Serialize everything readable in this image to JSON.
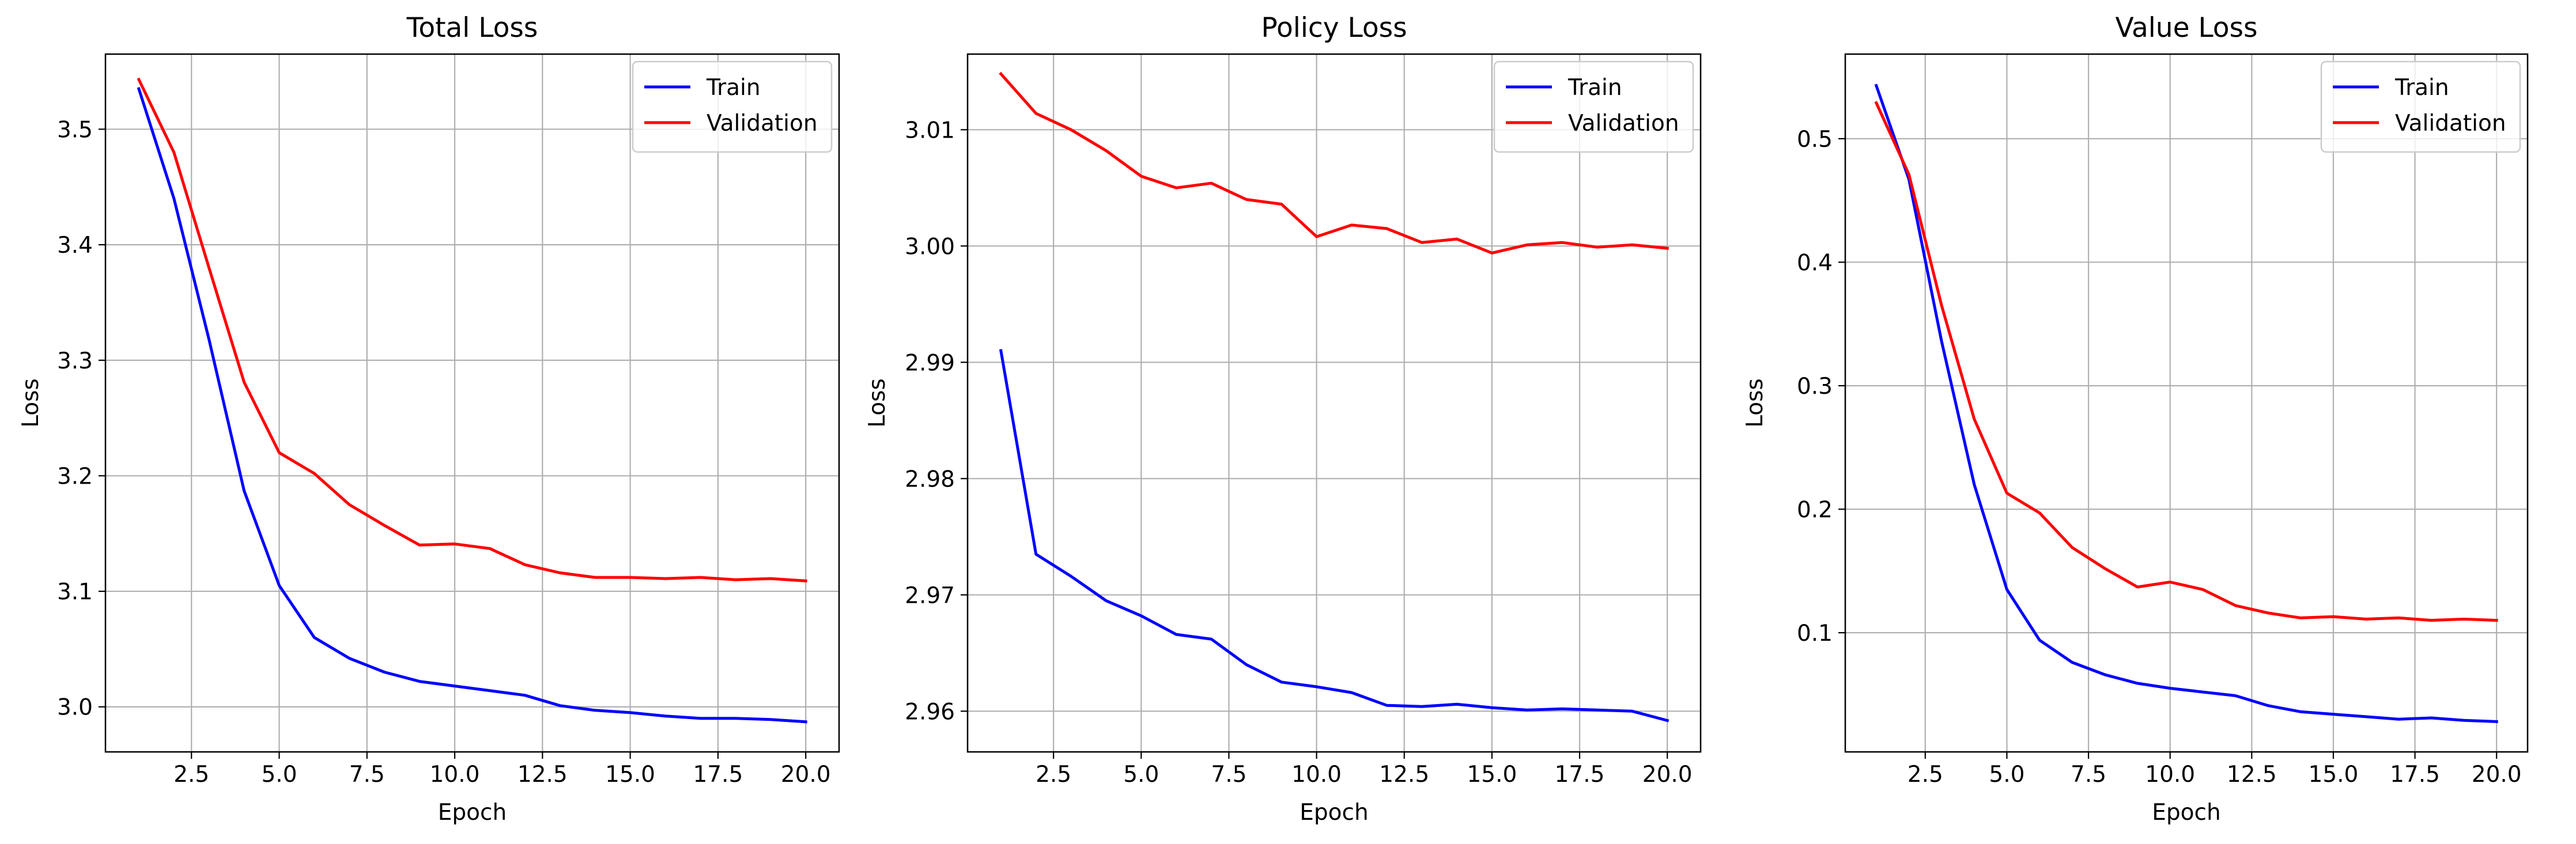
{
  "chart_data": [
    {
      "type": "line",
      "title": "Total Loss",
      "xlabel": "Epoch",
      "ylabel": "Loss",
      "xlim": [
        0.05,
        20.95
      ],
      "ylim": [
        2.961,
        3.565
      ],
      "xticks": [
        2.5,
        5.0,
        7.5,
        10.0,
        12.5,
        15.0,
        17.5,
        20.0
      ],
      "xtick_labels": [
        "2.5",
        "5.0",
        "7.5",
        "10.0",
        "12.5",
        "15.0",
        "17.5",
        "20.0"
      ],
      "yticks": [
        3.0,
        3.1,
        3.2,
        3.3,
        3.4,
        3.5
      ],
      "ytick_labels": [
        "3.0",
        "3.1",
        "3.2",
        "3.3",
        "3.4",
        "3.5"
      ],
      "grid": true,
      "legend_position": "top-right",
      "x": [
        1,
        2,
        3,
        4,
        5,
        6,
        7,
        8,
        9,
        10,
        11,
        12,
        13,
        14,
        15,
        16,
        17,
        18,
        19,
        20
      ],
      "series": [
        {
          "name": "Train",
          "color": "#0000ff",
          "values": [
            3.535,
            3.44,
            3.318,
            3.187,
            3.105,
            3.06,
            3.042,
            3.03,
            3.022,
            3.018,
            3.014,
            3.01,
            3.001,
            2.997,
            2.995,
            2.992,
            2.99,
            2.99,
            2.989,
            2.987
          ]
        },
        {
          "name": "Validation",
          "color": "#ff0000",
          "values": [
            3.543,
            3.48,
            3.38,
            3.281,
            3.22,
            3.202,
            3.175,
            3.157,
            3.14,
            3.141,
            3.137,
            3.123,
            3.116,
            3.112,
            3.112,
            3.111,
            3.112,
            3.11,
            3.111,
            3.109
          ]
        }
      ]
    },
    {
      "type": "line",
      "title": "Policy Loss",
      "xlabel": "Epoch",
      "ylabel": "Loss",
      "xlim": [
        0.05,
        20.95
      ],
      "ylim": [
        2.9565,
        3.0165
      ],
      "xticks": [
        2.5,
        5.0,
        7.5,
        10.0,
        12.5,
        15.0,
        17.5,
        20.0
      ],
      "xtick_labels": [
        "2.5",
        "5.0",
        "7.5",
        "10.0",
        "12.5",
        "15.0",
        "17.5",
        "20.0"
      ],
      "yticks": [
        2.96,
        2.97,
        2.98,
        2.99,
        3.0,
        3.01
      ],
      "ytick_labels": [
        "2.96",
        "2.97",
        "2.98",
        "2.99",
        "3.00",
        "3.01"
      ],
      "grid": true,
      "legend_position": "top-right",
      "x": [
        1,
        2,
        3,
        4,
        5,
        6,
        7,
        8,
        9,
        10,
        11,
        12,
        13,
        14,
        15,
        16,
        17,
        18,
        19,
        20
      ],
      "series": [
        {
          "name": "Train",
          "color": "#0000ff",
          "values": [
            2.991,
            2.9735,
            2.9716,
            2.9695,
            2.9682,
            2.9666,
            2.9662,
            2.964,
            2.9625,
            2.9621,
            2.9616,
            2.9605,
            2.9604,
            2.9606,
            2.9603,
            2.9601,
            2.9602,
            2.9601,
            2.96,
            2.9592
          ]
        },
        {
          "name": "Validation",
          "color": "#ff0000",
          "values": [
            3.0148,
            3.0114,
            3.01,
            3.0082,
            3.006,
            3.005,
            3.0054,
            3.004,
            3.0036,
            3.0008,
            3.0018,
            3.0015,
            3.0003,
            3.0006,
            2.9994,
            3.0001,
            3.0003,
            2.9999,
            3.0001,
            2.9998
          ]
        }
      ]
    },
    {
      "type": "line",
      "title": "Value Loss",
      "xlabel": "Epoch",
      "ylabel": "Loss",
      "xlim": [
        0.05,
        20.95
      ],
      "ylim": [
        0.0035,
        0.5685
      ],
      "xticks": [
        2.5,
        5.0,
        7.5,
        10.0,
        12.5,
        15.0,
        17.5,
        20.0
      ],
      "xtick_labels": [
        "2.5",
        "5.0",
        "7.5",
        "10.0",
        "12.5",
        "15.0",
        "17.5",
        "20.0"
      ],
      "yticks": [
        0.1,
        0.2,
        0.3,
        0.4,
        0.5
      ],
      "ytick_labels": [
        "0.1",
        "0.2",
        "0.3",
        "0.4",
        "0.5"
      ],
      "grid": true,
      "legend_position": "top-right",
      "x": [
        1,
        2,
        3,
        4,
        5,
        6,
        7,
        8,
        9,
        10,
        11,
        12,
        13,
        14,
        15,
        16,
        17,
        18,
        19,
        20
      ],
      "series": [
        {
          "name": "Train",
          "color": "#0000ff",
          "values": [
            0.543,
            0.467,
            0.336,
            0.22,
            0.135,
            0.094,
            0.076,
            0.066,
            0.059,
            0.055,
            0.052,
            0.049,
            0.041,
            0.036,
            0.034,
            0.032,
            0.03,
            0.031,
            0.029,
            0.028
          ]
        },
        {
          "name": "Validation",
          "color": "#ff0000",
          "values": [
            0.529,
            0.471,
            0.365,
            0.273,
            0.213,
            0.197,
            0.169,
            0.152,
            0.137,
            0.141,
            0.135,
            0.122,
            0.116,
            0.112,
            0.113,
            0.111,
            0.112,
            0.11,
            0.111,
            0.11
          ]
        }
      ]
    }
  ]
}
